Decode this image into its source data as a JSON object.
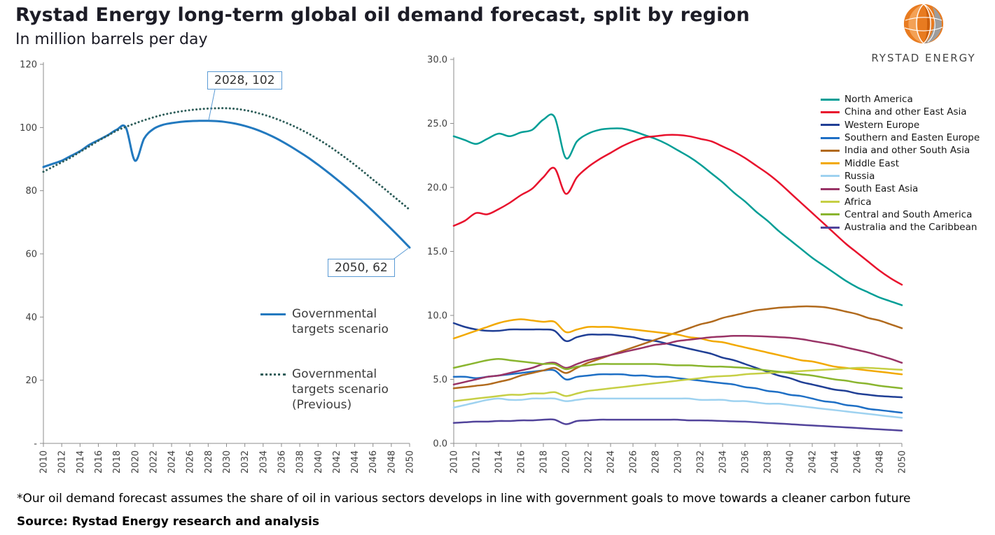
{
  "page": {
    "title": "Rystad Energy long-term global oil demand forecast, split by region",
    "subtitle": "In million barrels per day",
    "logo_text": "RYSTAD ENERGY",
    "footnote": "*Our oil demand forecast assumes the share of oil in various sectors develops in line with government goals to move towards a cleaner carbon future",
    "source": "Source: Rystad Energy research and analysis"
  },
  "colors": {
    "callout_border": "#5b9bd5",
    "axis": "#8c8c8c"
  },
  "chart_data": [
    {
      "id": "total-global-demand",
      "type": "line",
      "title": "",
      "xlabel": "",
      "ylabel": "",
      "ylim": [
        0,
        120
      ],
      "grid": false,
      "x": [
        2010,
        2011,
        2012,
        2013,
        2014,
        2015,
        2016,
        2017,
        2018,
        2019,
        2020,
        2021,
        2022,
        2023,
        2024,
        2025,
        2026,
        2027,
        2028,
        2029,
        2030,
        2031,
        2032,
        2033,
        2034,
        2035,
        2036,
        2037,
        2038,
        2039,
        2040,
        2041,
        2042,
        2043,
        2044,
        2045,
        2046,
        2047,
        2048,
        2049,
        2050
      ],
      "x_tick_labels": [
        "2010",
        "2012",
        "2014",
        "2016",
        "2018",
        "2020",
        "2022",
        "2024",
        "2026",
        "2028",
        "2030",
        "2032",
        "2034",
        "2036",
        "2038",
        "2040",
        "2042",
        "2044",
        "2046",
        "2048",
        "2050"
      ],
      "y_ticks": [
        0,
        20,
        40,
        60,
        80,
        100,
        120
      ],
      "y_tick_labels": [
        "-",
        "20",
        "40",
        "60",
        "80",
        "100",
        "120"
      ],
      "series": [
        {
          "name": "Governmental targets scenario",
          "style": "solid",
          "color": "#2279bf",
          "values": [
            87.5,
            88.5,
            89.5,
            91,
            92.5,
            94.5,
            96,
            97.5,
            99.3,
            100,
            89.5,
            96.5,
            99.5,
            100.8,
            101.4,
            101.8,
            102,
            102.1,
            102.1,
            102,
            101.7,
            101.2,
            100.5,
            99.6,
            98.5,
            97.2,
            95.7,
            94,
            92.2,
            90.3,
            88.2,
            86,
            83.7,
            81.3,
            78.8,
            76.2,
            73.5,
            70.7,
            67.9,
            65,
            62
          ]
        },
        {
          "name": "Governmental targets scenario (Previous)",
          "style": "dotted",
          "color": "#2d5d59",
          "values": [
            86,
            87.5,
            89,
            90.5,
            92.3,
            94,
            95.8,
            97.4,
            99,
            100.2,
            101.3,
            102.3,
            103.2,
            104,
            104.6,
            105.1,
            105.5,
            105.8,
            106,
            106.1,
            106.1,
            105.9,
            105.5,
            104.9,
            104.1,
            103.2,
            102.1,
            100.9,
            99.5,
            98,
            96.3,
            94.5,
            92.5,
            90.4,
            88.2,
            85.9,
            83.5,
            81.2,
            78.8,
            76.4,
            74
          ]
        }
      ],
      "annotations": [
        {
          "label": "2028, 102",
          "x": 2028,
          "y": 102
        },
        {
          "label": "2050, 62",
          "x": 2050,
          "y": 62
        }
      ],
      "legend_position": "inside-center"
    },
    {
      "id": "regional-demand",
      "type": "line",
      "title": "",
      "xlabel": "",
      "ylabel": "",
      "ylim": [
        0,
        30
      ],
      "grid": false,
      "x": [
        2010,
        2011,
        2012,
        2013,
        2014,
        2015,
        2016,
        2017,
        2018,
        2019,
        2020,
        2021,
        2022,
        2023,
        2024,
        2025,
        2026,
        2027,
        2028,
        2029,
        2030,
        2031,
        2032,
        2033,
        2034,
        2035,
        2036,
        2037,
        2038,
        2039,
        2040,
        2041,
        2042,
        2043,
        2044,
        2045,
        2046,
        2047,
        2048,
        2049,
        2050
      ],
      "x_tick_labels": [
        "2010",
        "2012",
        "2014",
        "2016",
        "2018",
        "2020",
        "2022",
        "2024",
        "2026",
        "2028",
        "2030",
        "2032",
        "2034",
        "2036",
        "2038",
        "2040",
        "2042",
        "2044",
        "2046",
        "2048",
        "2050"
      ],
      "y_ticks": [
        0,
        5,
        10,
        15,
        20,
        25,
        30
      ],
      "y_tick_labels": [
        "0.0",
        "5.0",
        "10.0",
        "15.0",
        "20.0",
        "25.0",
        "30.0"
      ],
      "series": [
        {
          "name": "North America",
          "style": "solid",
          "color": "#009e96",
          "values": [
            24,
            23.7,
            23.4,
            23.8,
            24.2,
            24,
            24.3,
            24.5,
            25.3,
            25.5,
            22.3,
            23.6,
            24.2,
            24.5,
            24.6,
            24.6,
            24.4,
            24.1,
            23.8,
            23.4,
            22.9,
            22.4,
            21.8,
            21.1,
            20.4,
            19.6,
            18.9,
            18.1,
            17.4,
            16.6,
            15.9,
            15.2,
            14.5,
            13.9,
            13.3,
            12.7,
            12.2,
            11.8,
            11.4,
            11.1,
            10.8
          ]
        },
        {
          "name": "China and other East Asia",
          "style": "solid",
          "color": "#e8112d",
          "values": [
            17,
            17.4,
            18,
            17.9,
            18.3,
            18.8,
            19.4,
            19.9,
            20.8,
            21.5,
            19.5,
            20.8,
            21.6,
            22.2,
            22.7,
            23.2,
            23.6,
            23.9,
            24,
            24.1,
            24.1,
            24,
            23.8,
            23.6,
            23.2,
            22.8,
            22.3,
            21.7,
            21.1,
            20.4,
            19.6,
            18.8,
            18,
            17.2,
            16.4,
            15.6,
            14.9,
            14.2,
            13.5,
            12.9,
            12.4
          ]
        },
        {
          "name": "Western Europe",
          "style": "solid",
          "color": "#203f95",
          "values": [
            9.4,
            9.1,
            8.9,
            8.8,
            8.8,
            8.9,
            8.9,
            8.9,
            8.9,
            8.8,
            8,
            8.3,
            8.5,
            8.5,
            8.5,
            8.4,
            8.3,
            8.1,
            8,
            7.8,
            7.6,
            7.4,
            7.2,
            7,
            6.7,
            6.5,
            6.2,
            5.9,
            5.6,
            5.3,
            5.1,
            4.8,
            4.6,
            4.4,
            4.2,
            4.1,
            3.9,
            3.8,
            3.7,
            3.65,
            3.6
          ]
        },
        {
          "name": "Southern and Easten Europe",
          "style": "solid",
          "color": "#1e6fc5",
          "values": [
            5.2,
            5.2,
            5.1,
            5.2,
            5.3,
            5.4,
            5.5,
            5.6,
            5.7,
            5.7,
            5,
            5.2,
            5.3,
            5.4,
            5.4,
            5.4,
            5.3,
            5.3,
            5.2,
            5.2,
            5.1,
            5,
            4.9,
            4.8,
            4.7,
            4.6,
            4.4,
            4.3,
            4.1,
            4,
            3.8,
            3.7,
            3.5,
            3.3,
            3.2,
            3,
            2.9,
            2.7,
            2.6,
            2.5,
            2.4
          ]
        },
        {
          "name": "India and other South Asia",
          "style": "solid",
          "color": "#b16a1d",
          "values": [
            4.3,
            4.4,
            4.5,
            4.6,
            4.8,
            5,
            5.3,
            5.5,
            5.7,
            5.9,
            5.5,
            5.9,
            6.3,
            6.6,
            6.9,
            7.2,
            7.5,
            7.8,
            8.1,
            8.4,
            8.7,
            9,
            9.3,
            9.5,
            9.8,
            10,
            10.2,
            10.4,
            10.5,
            10.6,
            10.65,
            10.7,
            10.7,
            10.65,
            10.5,
            10.3,
            10.1,
            9.8,
            9.6,
            9.3,
            9
          ]
        },
        {
          "name": "Middle East",
          "style": "solid",
          "color": "#f2a900",
          "values": [
            8.2,
            8.5,
            8.8,
            9.1,
            9.4,
            9.6,
            9.7,
            9.6,
            9.5,
            9.5,
            8.7,
            8.9,
            9.1,
            9.1,
            9.1,
            9,
            8.9,
            8.8,
            8.7,
            8.6,
            8.5,
            8.3,
            8.2,
            8,
            7.9,
            7.7,
            7.5,
            7.3,
            7.1,
            6.9,
            6.7,
            6.5,
            6.4,
            6.2,
            6,
            5.9,
            5.8,
            5.7,
            5.6,
            5.5,
            5.4
          ]
        },
        {
          "name": "Russia",
          "style": "solid",
          "color": "#9ed2f0",
          "values": [
            2.8,
            3,
            3.2,
            3.4,
            3.5,
            3.4,
            3.4,
            3.5,
            3.5,
            3.5,
            3.3,
            3.4,
            3.5,
            3.5,
            3.5,
            3.5,
            3.5,
            3.5,
            3.5,
            3.5,
            3.5,
            3.5,
            3.4,
            3.4,
            3.4,
            3.3,
            3.3,
            3.2,
            3.1,
            3.1,
            3,
            2.9,
            2.8,
            2.7,
            2.6,
            2.5,
            2.4,
            2.3,
            2.2,
            2.1,
            2
          ]
        },
        {
          "name": "South East Asia",
          "style": "solid",
          "color": "#993366",
          "values": [
            4.6,
            4.8,
            5,
            5.2,
            5.3,
            5.5,
            5.7,
            5.9,
            6.2,
            6.3,
            5.9,
            6.2,
            6.5,
            6.7,
            6.9,
            7.1,
            7.3,
            7.5,
            7.7,
            7.8,
            8,
            8.1,
            8.2,
            8.3,
            8.35,
            8.4,
            8.4,
            8.38,
            8.35,
            8.3,
            8.25,
            8.15,
            8,
            7.85,
            7.7,
            7.5,
            7.3,
            7.1,
            6.85,
            6.6,
            6.3
          ]
        },
        {
          "name": "Africa",
          "style": "solid",
          "color": "#c6cf45",
          "values": [
            3.3,
            3.4,
            3.5,
            3.6,
            3.7,
            3.8,
            3.8,
            3.9,
            3.9,
            4,
            3.7,
            3.9,
            4.1,
            4.2,
            4.3,
            4.4,
            4.5,
            4.6,
            4.7,
            4.8,
            4.9,
            5,
            5.1,
            5.2,
            5.25,
            5.3,
            5.4,
            5.45,
            5.5,
            5.55,
            5.6,
            5.65,
            5.7,
            5.75,
            5.8,
            5.85,
            5.9,
            5.9,
            5.85,
            5.8,
            5.75
          ]
        },
        {
          "name": "Central and South America",
          "style": "solid",
          "color": "#8ab52f",
          "values": [
            5.9,
            6.1,
            6.3,
            6.5,
            6.6,
            6.5,
            6.4,
            6.3,
            6.2,
            6.2,
            5.8,
            6,
            6.1,
            6.2,
            6.2,
            6.2,
            6.2,
            6.2,
            6.2,
            6.15,
            6.1,
            6.1,
            6.05,
            6,
            6,
            5.95,
            5.9,
            5.8,
            5.7,
            5.6,
            5.5,
            5.4,
            5.3,
            5.15,
            5,
            4.9,
            4.75,
            4.65,
            4.5,
            4.4,
            4.3
          ]
        },
        {
          "name": "Australia and the Caribbean",
          "style": "solid",
          "color": "#52449b",
          "values": [
            1.6,
            1.65,
            1.7,
            1.7,
            1.75,
            1.75,
            1.8,
            1.8,
            1.85,
            1.85,
            1.5,
            1.75,
            1.8,
            1.85,
            1.85,
            1.85,
            1.85,
            1.85,
            1.85,
            1.85,
            1.85,
            1.8,
            1.8,
            1.78,
            1.75,
            1.72,
            1.7,
            1.65,
            1.6,
            1.55,
            1.5,
            1.45,
            1.4,
            1.35,
            1.3,
            1.25,
            1.2,
            1.15,
            1.1,
            1.05,
            1
          ]
        }
      ],
      "legend_position": "right"
    }
  ]
}
